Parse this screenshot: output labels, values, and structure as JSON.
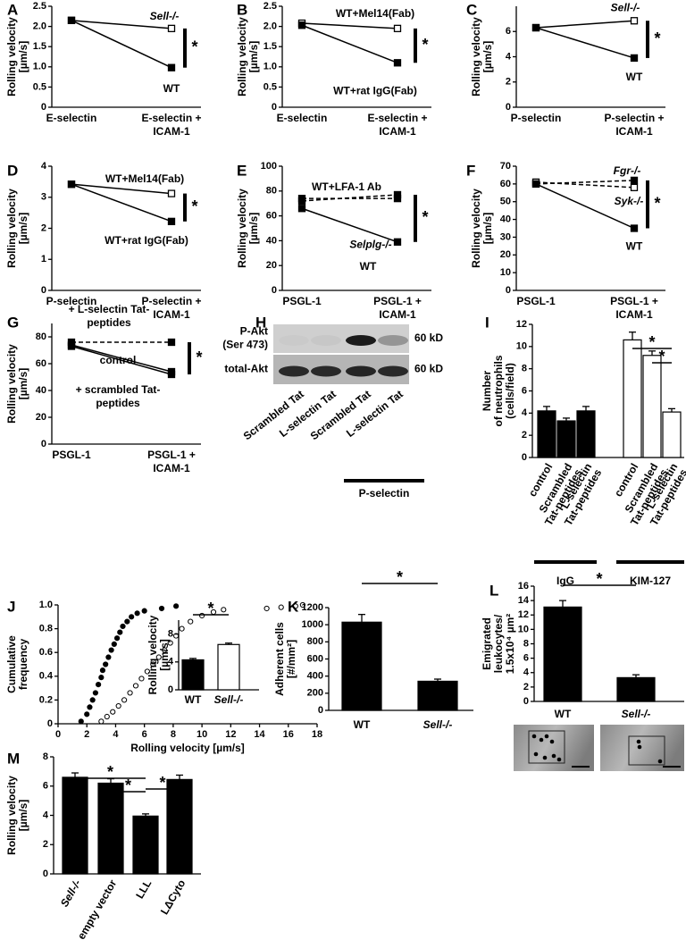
{
  "chart_data": [
    {
      "panel": "A",
      "type": "line",
      "categories": [
        [
          "E-selectin"
        ],
        [
          "E-selectin +",
          "ICAM-1"
        ]
      ],
      "ylabel": [
        "Rolling velocity",
        "[µm/s]"
      ],
      "ylim": [
        0,
        2.5
      ],
      "yticks": [
        0,
        0.5,
        {
          "value": 1,
          "label": "1.0"
        },
        1.5,
        {
          "value": 2,
          "label": "2.0"
        },
        2.5
      ],
      "series": [
        {
          "name": "Sell-/-",
          "color": "#000000",
          "marker": "open",
          "dashed": false,
          "values": [
            2.15,
            1.95
          ]
        },
        {
          "name": "WT",
          "color": "#000000",
          "marker": "filled",
          "dashed": false,
          "values": [
            2.15,
            0.98
          ]
        }
      ],
      "annotations": [
        "*"
      ]
    },
    {
      "panel": "B",
      "type": "line",
      "categories": [
        [
          "E-selectin"
        ],
        [
          "E-selectin +",
          "ICAM-1"
        ]
      ],
      "ylabel": [
        "Rolling velocity",
        "[µm/s]"
      ],
      "ylim": [
        0,
        2.5
      ],
      "yticks": [
        0,
        0.5,
        {
          "value": 1,
          "label": "1.0"
        },
        1.5,
        {
          "value": 2,
          "label": "2.0"
        },
        2.5
      ],
      "series": [
        {
          "name": "WT+Mel14(Fab)",
          "color": "#000000",
          "marker": "open",
          "dashed": false,
          "values": [
            2.08,
            1.95
          ]
        },
        {
          "name": "WT+rat IgG(Fab)",
          "color": "#000000",
          "marker": "filled",
          "dashed": false,
          "values": [
            2.03,
            1.1
          ]
        }
      ],
      "annotations": [
        "*"
      ]
    },
    {
      "panel": "C",
      "type": "line",
      "categories": [
        [
          "P-selectin"
        ],
        [
          "P-selectin +",
          "ICAM-1"
        ]
      ],
      "ylabel": [
        "Rolling velocity",
        "[µm/s]"
      ],
      "ylim": [
        0,
        8
      ],
      "yticks": [
        0,
        2,
        4,
        6
      ],
      "series": [
        {
          "name": "Sell-/-",
          "color": "#000000",
          "marker": "open",
          "dashed": false,
          "values": [
            6.3,
            6.85
          ]
        },
        {
          "name": "WT",
          "color": "#000000",
          "marker": "filled",
          "dashed": false,
          "values": [
            6.3,
            3.9
          ]
        }
      ],
      "annotations": [
        "*"
      ]
    },
    {
      "panel": "D",
      "type": "line",
      "categories": [
        [
          "P-selectin"
        ],
        [
          "P-selectin +",
          "ICAM-1"
        ]
      ],
      "ylabel": [
        "Rolling velocity",
        "[µm/s]"
      ],
      "ylim": [
        0,
        4
      ],
      "yticks": [
        0,
        1,
        2,
        3,
        4
      ],
      "series": [
        {
          "name": "WT+Mel14(Fab)",
          "color": "#000000",
          "marker": "open",
          "dashed": false,
          "values": [
            3.42,
            3.12
          ]
        },
        {
          "name": "WT+rat IgG(Fab)",
          "color": "#000000",
          "marker": "filled",
          "dashed": false,
          "values": [
            3.42,
            2.22
          ]
        }
      ],
      "annotations": [
        "*"
      ]
    },
    {
      "panel": "E",
      "type": "line",
      "categories": [
        [
          "PSGL-1"
        ],
        [
          "PSGL-1 +",
          "ICAM-1"
        ]
      ],
      "ylabel": [
        "Rolling velocity",
        "[µm/s]"
      ],
      "ylim": [
        0,
        100
      ],
      "yticks": [
        0,
        20,
        40,
        60,
        80,
        100
      ],
      "series": [
        {
          "name": "WT+LFA-1 Ab",
          "color": "#000000",
          "marker": "filled",
          "dashed": true,
          "values": [
            72,
            77
          ]
        },
        {
          "name": "Selplg-/-",
          "color": "#000000",
          "marker": "filled",
          "dashed": true,
          "values": [
            74,
            74
          ]
        },
        {
          "name": "WT",
          "color": "#000000",
          "marker": "filled",
          "dashed": false,
          "values": [
            66,
            39
          ]
        }
      ],
      "annotations": [
        "*"
      ]
    },
    {
      "panel": "F",
      "type": "line",
      "categories": [
        [
          "PSGL-1"
        ],
        [
          "PSGL-1 +",
          "ICAM-1"
        ]
      ],
      "ylabel": [
        "Rolling velocity",
        "[µm/s]"
      ],
      "ylim": [
        0,
        70
      ],
      "yticks": [
        0,
        10,
        20,
        30,
        40,
        50,
        60,
        70
      ],
      "series": [
        {
          "name": "Fgr-/-",
          "color": "#000000",
          "marker": "filled",
          "dashed": true,
          "values": [
            60,
            62
          ]
        },
        {
          "name": "Syk-/-",
          "color": "#000000",
          "marker": "open",
          "dashed": true,
          "values": [
            61,
            58
          ]
        },
        {
          "name": "WT",
          "color": "#000000",
          "marker": "filled",
          "dashed": false,
          "values": [
            60,
            35
          ]
        }
      ],
      "annotations": [
        "*"
      ]
    },
    {
      "panel": "G",
      "type": "line",
      "categories": [
        [
          "PSGL-1"
        ],
        [
          "PSGL-1 +",
          "ICAM-1"
        ]
      ],
      "ylabel": [
        "Rolling velocity",
        "[µm/s]"
      ],
      "ylim": [
        0,
        90
      ],
      "yticks": [
        0,
        20,
        40,
        60,
        80
      ],
      "series": [
        {
          "name": [
            "+ L-selectin Tat-",
            "peptides"
          ],
          "color": "#000000",
          "marker": "filled",
          "dashed": true,
          "values": [
            76,
            76
          ]
        },
        {
          "name": "control",
          "color": "#000000",
          "marker": "filled",
          "dashed": false,
          "values": [
            74,
            54
          ]
        },
        {
          "name": [
            "+ scrambled Tat-",
            "peptides"
          ],
          "color": "#000000",
          "marker": "filled",
          "dashed": false,
          "values": [
            73,
            52
          ]
        }
      ],
      "annotations": [
        "*"
      ]
    },
    {
      "panel": "H",
      "type": "blot",
      "rows": [
        {
          "label": [
            "P-Akt",
            "(Ser 473)"
          ],
          "size": "60 kD"
        },
        {
          "label": [
            "total-Akt"
          ],
          "size": "60 kD"
        }
      ],
      "lanes": [
        "Scrambled Tat",
        "L-selectin Tat",
        "Scrambled Tat",
        "L-selectin Tat"
      ],
      "group_label": "P-selectin"
    },
    {
      "panel": "I",
      "type": "bar",
      "categories": [
        [
          "control"
        ],
        [
          "Scrambled",
          "Tat-peptides"
        ],
        [
          "L-selectin",
          "Tat-peptides"
        ]
      ],
      "ylabel": [
        "Number",
        "of neutrophils",
        "(cells/field)"
      ],
      "ylim": [
        0,
        12
      ],
      "yticks": [
        0,
        2,
        4,
        6,
        8,
        10,
        12
      ],
      "series": [
        {
          "name": "IgG",
          "color": "#000000",
          "values": [
            4.2,
            3.3,
            4.2
          ],
          "errors": [
            0.4,
            0.25,
            0.4
          ]
        },
        {
          "name": "KIM-127",
          "color": "#ffffff",
          "values": [
            10.6,
            9.2,
            4.1
          ],
          "errors": [
            0.7,
            0.4,
            0.3
          ]
        }
      ],
      "annotations": [
        "*",
        "*"
      ]
    },
    {
      "panel": "J",
      "type": "scatter",
      "ylabel": [
        "Cumulative",
        "frequency"
      ],
      "xlabel": "Rolling velocity [µm/s]",
      "xlim": [
        0,
        18
      ],
      "xticks": [
        0,
        2,
        4,
        6,
        8,
        10,
        12,
        14,
        16,
        18
      ],
      "ylim": [
        0,
        1
      ],
      "yticks": [
        0,
        0.2,
        0.4,
        0.6,
        0.8,
        {
          "value": 1,
          "label": "1.0"
        }
      ],
      "series": [
        {
          "color": "#000000",
          "marker": "filled",
          "x": [
            1.6,
            2.0,
            2.2,
            2.4,
            2.6,
            2.8,
            3.0,
            3.1,
            3.3,
            3.5,
            3.7,
            3.9,
            4.1,
            4.3,
            4.5,
            4.8,
            5.1,
            5.5,
            6.0,
            7.2,
            8.2
          ],
          "values": [
            0.02,
            0.08,
            0.14,
            0.2,
            0.26,
            0.33,
            0.39,
            0.45,
            0.5,
            0.56,
            0.62,
            0.67,
            0.72,
            0.77,
            0.82,
            0.86,
            0.9,
            0.93,
            0.95,
            0.97,
            0.99
          ]
        },
        {
          "color": "#000000",
          "marker": "open",
          "x": [
            3.0,
            3.4,
            3.8,
            4.2,
            4.6,
            5.0,
            5.4,
            5.8,
            6.2,
            6.6,
            7.0,
            7.4,
            7.8,
            8.2,
            8.6,
            9.2,
            10.0,
            10.8,
            11.5,
            14.5,
            15.5,
            16.5,
            17.0
          ],
          "values": [
            0.02,
            0.06,
            0.1,
            0.15,
            0.2,
            0.26,
            0.32,
            0.38,
            0.44,
            0.5,
            0.56,
            0.62,
            0.68,
            0.74,
            0.8,
            0.86,
            0.91,
            0.94,
            0.96,
            0.97,
            0.98,
            0.99,
            1.0
          ]
        }
      ],
      "inset": {
        "type": "bar",
        "categories": [
          [
            "WT"
          ],
          [
            "Sell-/-"
          ]
        ],
        "ylabel": [
          "Rolling velocity",
          "[µm/s]"
        ],
        "ylim": [
          0,
          10
        ],
        "yticks": [
          0,
          4,
          8
        ],
        "series": [
          {
            "color": "#000000",
            "values": [
              4.3
            ],
            "errors": [
              0.2
            ]
          },
          {
            "color": "#ffffff",
            "values": [
              6.5
            ],
            "errors": [
              0.2
            ]
          }
        ],
        "annotations": [
          "*"
        ]
      }
    },
    {
      "panel": "K",
      "type": "bar",
      "categories": [
        [
          "WT"
        ],
        [
          "Sell-/-"
        ]
      ],
      "ylabel": [
        "Adherent cells",
        "[#/mm²]"
      ],
      "ylim": [
        0,
        1200
      ],
      "yticks": [
        0,
        200,
        400,
        600,
        800,
        1000,
        1200
      ],
      "series": [
        {
          "color": "#000000",
          "values": [
            1030,
            340
          ],
          "errors": [
            90,
            25
          ]
        }
      ],
      "annotations": [
        "*"
      ]
    },
    {
      "panel": "L",
      "type": "bar",
      "categories": [
        [
          "WT"
        ],
        [
          "Sell-/-"
        ]
      ],
      "ylabel": [
        "Emigrated",
        "leukocytes/",
        "1.5x10⁴ µm²"
      ],
      "ylim": [
        0,
        16
      ],
      "yticks": [
        0,
        2,
        4,
        6,
        8,
        10,
        12,
        14,
        16
      ],
      "series": [
        {
          "color": "#000000",
          "values": [
            13.1,
            3.3
          ],
          "errors": [
            0.9,
            0.4
          ]
        }
      ],
      "annotations": [
        "*"
      ]
    },
    {
      "panel": "M",
      "type": "bar",
      "categories": [
        [
          "Sell-/-"
        ],
        [
          "empty vector"
        ],
        [
          "LLL"
        ],
        [
          "LΔCyto"
        ]
      ],
      "ylabel": [
        "Rolling velocity",
        "[µm/s]"
      ],
      "ylim": [
        0,
        8
      ],
      "yticks": [
        0,
        2,
        4,
        6,
        8
      ],
      "series": [
        {
          "color": "#000000",
          "values": [
            6.6,
            6.2,
            3.95,
            6.45
          ],
          "errors": [
            0.3,
            0.3,
            0.15,
            0.3
          ]
        }
      ],
      "annotations": [
        "*",
        "*",
        "*"
      ]
    }
  ]
}
